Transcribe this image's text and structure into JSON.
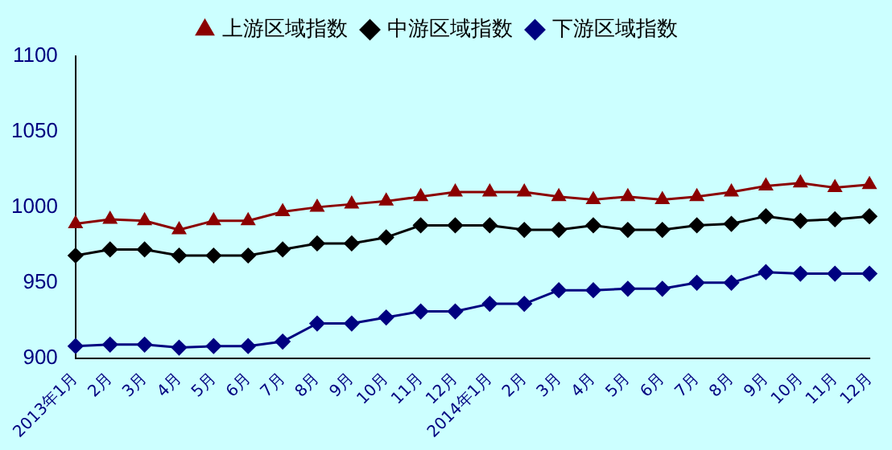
{
  "chart_data": {
    "type": "line",
    "categories": [
      "2013年1月",
      "2月",
      "3月",
      "4月",
      "5月",
      "6月",
      "7月",
      "8月",
      "9月",
      "10月",
      "11月",
      "12月",
      "2014年1月",
      "2月",
      "3月",
      "4月",
      "5月",
      "6月",
      "7月",
      "8月",
      "9月",
      "10月",
      "11月",
      "12月"
    ],
    "series": [
      {
        "name": "上游区域指数",
        "color": "#8b0000",
        "marker": "triangle",
        "values": [
          989,
          992,
          991,
          985,
          991,
          991,
          997,
          1000,
          1002,
          1004,
          1007,
          1010,
          1010,
          1010,
          1007,
          1005,
          1007,
          1005,
          1007,
          1010,
          1014,
          1016,
          1013,
          1015
        ]
      },
      {
        "name": "中游区域指数",
        "color": "#000000",
        "marker": "diamond",
        "values": [
          968,
          972,
          972,
          968,
          968,
          968,
          972,
          976,
          976,
          980,
          988,
          988,
          988,
          985,
          985,
          988,
          985,
          985,
          988,
          989,
          994,
          991,
          992,
          994
        ]
      },
      {
        "name": "下游区域指数",
        "color": "#000080",
        "marker": "diamond",
        "values": [
          908,
          909,
          909,
          907,
          908,
          908,
          911,
          923,
          923,
          927,
          931,
          931,
          936,
          936,
          945,
          945,
          946,
          946,
          950,
          950,
          957,
          956,
          956,
          956
        ]
      }
    ],
    "ylim": [
      900,
      1100
    ],
    "yticks": [
      900,
      950,
      1000,
      1050,
      1100
    ],
    "grid": false,
    "legend": "top",
    "line_style": "solid"
  }
}
